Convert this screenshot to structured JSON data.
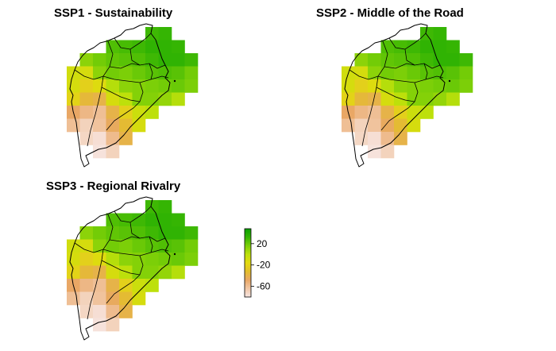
{
  "panels": [
    {
      "title": "SSP1 - Sustainability"
    },
    {
      "title": "SSP2 - Middle of the Road"
    },
    {
      "title": "SSP3 - Regional Rivalry"
    }
  ],
  "legend": {
    "ticks": [
      {
        "label": "20",
        "value": 20
      },
      {
        "label": "-20",
        "value": -20
      },
      {
        "label": "-60",
        "value": -60
      }
    ],
    "range": [
      -80,
      48
    ],
    "colors": [
      "#f7e6e3",
      "#f1c7a5",
      "#e9a765",
      "#e3be2c",
      "#e3da10",
      "#bde00b",
      "#7ccf08",
      "#35b503",
      "#0aa100"
    ]
  },
  "grid_values": [
    [
      null,
      null,
      null,
      null,
      null,
      null,
      30,
      32,
      null,
      null
    ],
    [
      null,
      null,
      null,
      26,
      28,
      30,
      34,
      34,
      32,
      null
    ],
    [
      null,
      12,
      18,
      22,
      24,
      26,
      30,
      34,
      34,
      30
    ],
    [
      -8,
      -10,
      12,
      18,
      16,
      20,
      24,
      26,
      24,
      18
    ],
    [
      -10,
      -22,
      -14,
      2,
      12,
      14,
      16,
      18,
      20,
      16
    ],
    [
      -20,
      -36,
      -40,
      -10,
      0,
      14,
      14,
      10,
      2,
      null
    ],
    [
      -48,
      -56,
      -60,
      -40,
      -22,
      -6,
      0,
      null,
      null,
      null
    ],
    [
      -60,
      -70,
      -62,
      -46,
      -34,
      -10,
      null,
      null,
      null,
      null
    ],
    [
      null,
      -72,
      -76,
      -58,
      -40,
      null,
      null,
      null,
      null,
      null
    ],
    [
      null,
      null,
      -78,
      -70,
      null,
      null,
      null,
      null,
      null,
      null
    ]
  ]
}
